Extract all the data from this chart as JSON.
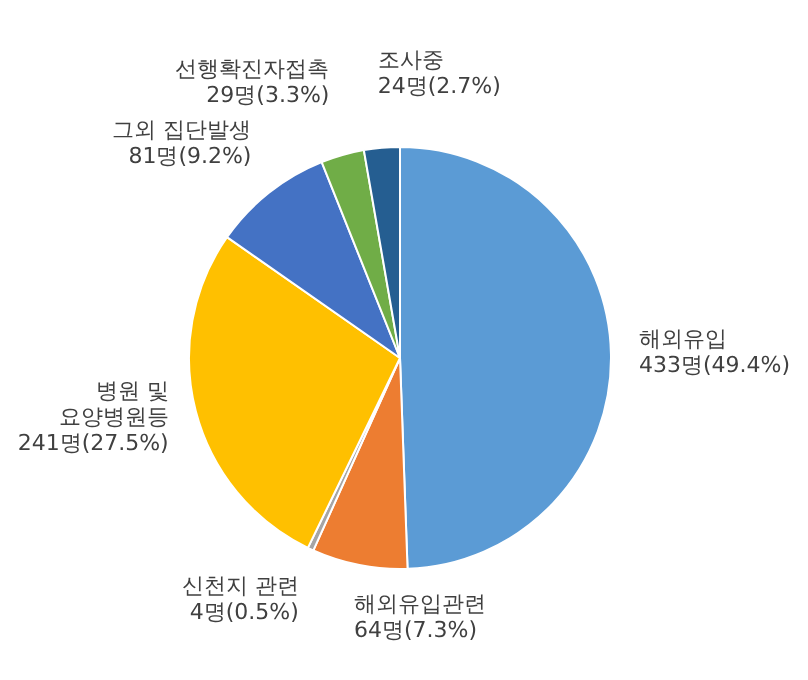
{
  "chart_data": {
    "type": "pie",
    "categories": [
      "해외유입",
      "해외유입관련",
      "신천지 관련",
      "병원 및\n요양병원등",
      "그외 집단발생",
      "선행확진자접촉",
      "조사중"
    ],
    "values": [
      433,
      64,
      4,
      241,
      81,
      29,
      24
    ],
    "value_labels": [
      "433명(49.4%)",
      "64명(7.3%)",
      "4명(0.5%)",
      "241명(27.5%)",
      "81명(9.2%)",
      "29명(3.3%)",
      "24명(2.7%)"
    ],
    "colors": [
      "#5b9bd5",
      "#ed7d31",
      "#a5a5a5",
      "#ffc000",
      "#4472c4",
      "#70ad47",
      "#255e91"
    ],
    "legend": false
  }
}
